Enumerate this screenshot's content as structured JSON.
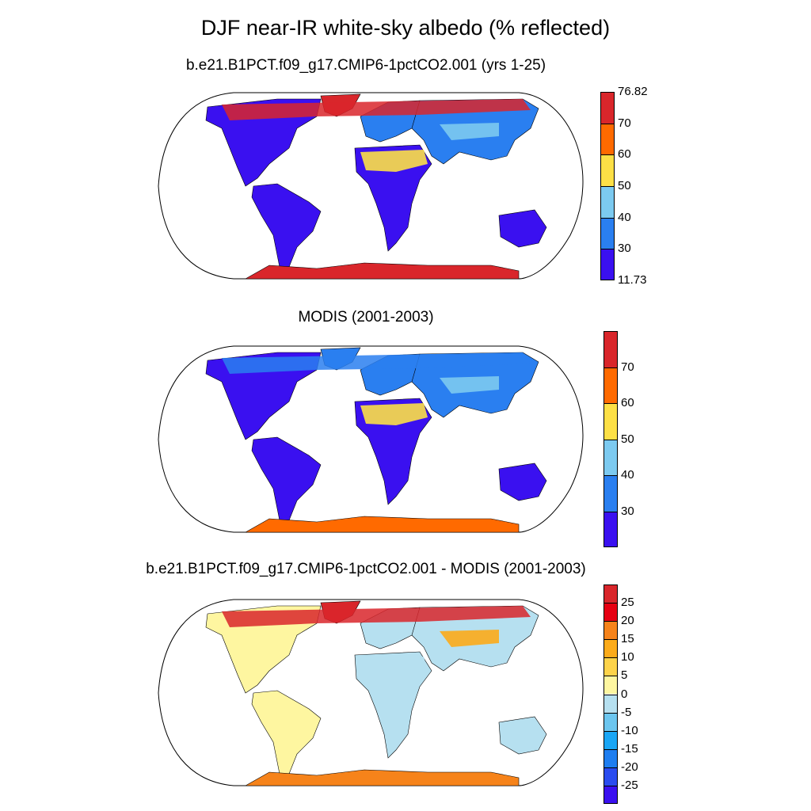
{
  "title": "DJF near-IR white-sky albedo (% reflected)",
  "panels": [
    {
      "id": "model",
      "subtitle": "b.e21.B1PCT.f09_g17.CMIP6-1pctCO2.001 (yrs 1-25)",
      "colorbar": {
        "colors": [
          "#3a10f0",
          "#2a7ff0",
          "#7ccaf0",
          "#fde046",
          "#ff6a00",
          "#d9262b"
        ],
        "labels": [
          "11.73",
          "30",
          "40",
          "50",
          "60",
          "70",
          "76.82"
        ]
      }
    },
    {
      "id": "obs",
      "subtitle": "MODIS (2001-2003)",
      "colorbar": {
        "colors": [
          "#3a10f0",
          "#2a7ff0",
          "#7ccaf0",
          "#fde046",
          "#ff6a00",
          "#d9262b"
        ],
        "labels": [
          "30",
          "40",
          "50",
          "60",
          "70"
        ]
      }
    },
    {
      "id": "diff",
      "subtitle": "b.e21.B1PCT.f09_g17.CMIP6-1pctCO2.001 - MODIS (2001-2003)",
      "colorbar": {
        "colors": [
          "#3a10f0",
          "#2a4cef",
          "#1e7ef0",
          "#1aa6f5",
          "#6cc6ef",
          "#b6e0f0",
          "#fef6a0",
          "#fdd34a",
          "#fcab1a",
          "#f6831a",
          "#e60012",
          "#d9262b"
        ],
        "labels": [
          "-25",
          "-20",
          "-15",
          "-10",
          "-5",
          "0",
          "5",
          "10",
          "15",
          "20",
          "25"
        ]
      }
    }
  ]
}
